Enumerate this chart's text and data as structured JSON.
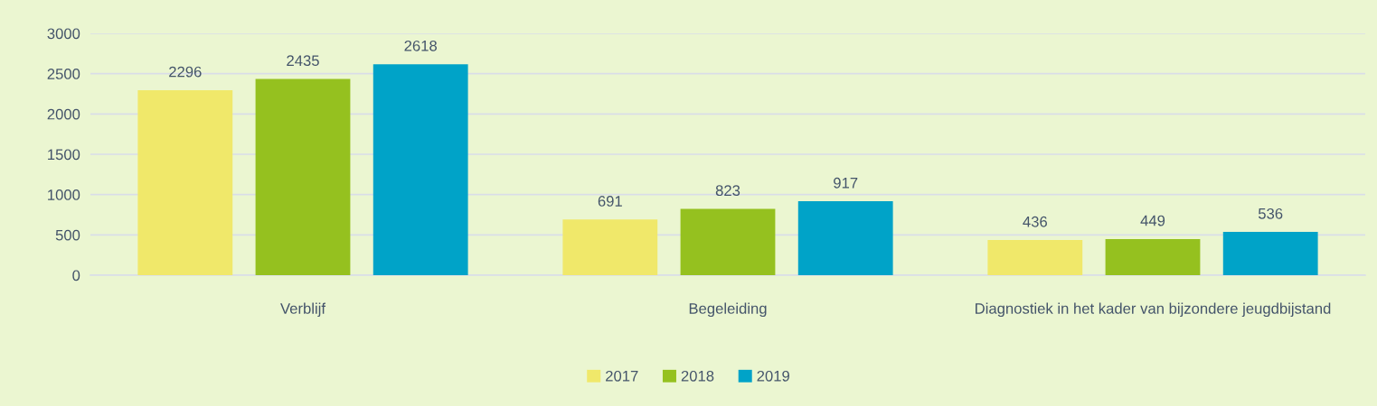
{
  "chart_data": {
    "type": "bar",
    "categories": [
      "Verblijf",
      "Begeleiding",
      "Diagnostiek in het kader van bijzondere jeugdbijstand"
    ],
    "series": [
      {
        "name": "2017",
        "color": "#f0e86a",
        "values": [
          2296,
          691,
          436
        ]
      },
      {
        "name": "2018",
        "color": "#95c11f",
        "values": [
          2435,
          823,
          449
        ]
      },
      {
        "name": "2019",
        "color": "#00a3c8",
        "values": [
          2618,
          917,
          536
        ]
      }
    ],
    "ylim": [
      0,
      3000
    ],
    "yticks": [
      0,
      500,
      1000,
      1500,
      2000,
      2500,
      3000
    ],
    "grid": "y",
    "legend": "bottom",
    "data_labels": true
  }
}
